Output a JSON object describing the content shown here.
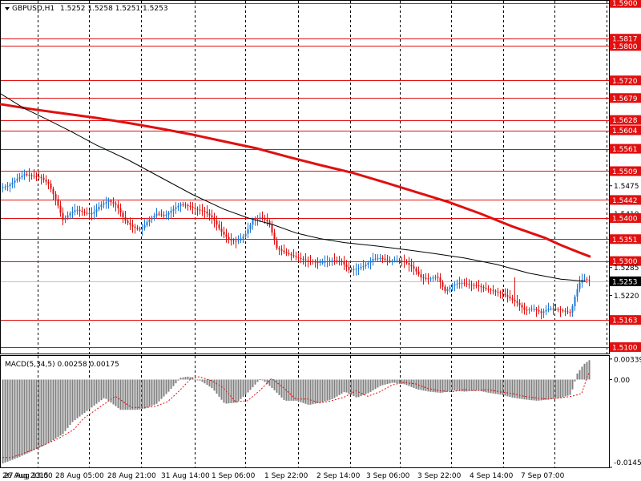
{
  "header": {
    "symbol_title": "GBPUSD,H1",
    "ohlc": "1.5252 1.5258 1.5251 1.5253",
    "macd_title": "MACD(5,34,5) 0.00258 0.00175"
  },
  "colors": {
    "background": "#ffffff",
    "bull_candle": "#1e78d2",
    "bear_candle": "#e01010",
    "level_line": "#e01010",
    "ma_fast": "#000000",
    "ma_slow": "#e01010",
    "macd_hist": "#808080",
    "macd_signal": "#e01010",
    "grid": "#000000",
    "price_badge": "#000000"
  },
  "chart_data": {
    "type": "candlestick",
    "price_range": [
      1.5085,
      1.5905
    ],
    "price_axis_ticks": [
      "1.5900",
      "1.5817",
      "1.5800",
      "1.5720",
      "1.5720",
      "1.5679",
      "1.5628",
      "1.5604",
      "1.5561",
      "1.5509",
      "1.5475",
      "1.5442",
      "1.5410",
      "1.5400",
      "1.5351",
      "1.5300",
      "1.5285",
      "1.5253",
      "1.5220",
      "1.5163",
      "1.5100"
    ],
    "horizontal_levels": [
      1.59,
      1.5817,
      1.58,
      1.572,
      1.5679,
      1.5628,
      1.5604,
      1.5561,
      1.5509,
      1.5442,
      1.54,
      1.5351,
      1.53,
      1.5163,
      1.51
    ],
    "current_price": "1.5253",
    "time_labels": [
      "26 Aug 2015",
      "27 Aug 13:00",
      "28 Aug 05:00",
      "28 Aug 21:00",
      "31 Aug 14:00",
      "1 Sep 06:00",
      "1 Sep 22:00",
      "2 Sep 14:00",
      "3 Sep 06:00",
      "3 Sep 22:00",
      "4 Sep 14:00",
      "7 Sep 07:00"
    ],
    "ma_fast_path": [
      [
        0,
        1.569
      ],
      [
        30,
        1.5655
      ],
      [
        60,
        1.5628
      ],
      [
        90,
        1.56
      ],
      [
        120,
        1.557
      ],
      [
        160,
        1.5535
      ],
      [
        200,
        1.5495
      ],
      [
        240,
        1.5455
      ],
      [
        280,
        1.542
      ],
      [
        310,
        1.54
      ],
      [
        340,
        1.5385
      ],
      [
        370,
        1.5365
      ],
      [
        400,
        1.5352
      ],
      [
        430,
        1.5343
      ],
      [
        470,
        1.5335
      ],
      [
        500,
        1.5328
      ],
      [
        540,
        1.5318
      ],
      [
        580,
        1.5307
      ],
      [
        620,
        1.5292
      ],
      [
        660,
        1.5272
      ],
      [
        700,
        1.5258
      ],
      [
        731,
        1.5253
      ]
    ],
    "ma_slow_path": [
      [
        0,
        1.5665
      ],
      [
        40,
        1.5653
      ],
      [
        80,
        1.5643
      ],
      [
        120,
        1.5633
      ],
      [
        160,
        1.5621
      ],
      [
        200,
        1.5608
      ],
      [
        240,
        1.5594
      ],
      [
        280,
        1.5578
      ],
      [
        320,
        1.5562
      ],
      [
        360,
        1.5542
      ],
      [
        400,
        1.5523
      ],
      [
        440,
        1.5505
      ],
      [
        480,
        1.5483
      ],
      [
        520,
        1.546
      ],
      [
        560,
        1.5437
      ],
      [
        600,
        1.541
      ],
      [
        640,
        1.538
      ],
      [
        680,
        1.5354
      ],
      [
        700,
        1.5337
      ],
      [
        720,
        1.5322
      ],
      [
        737,
        1.531
      ]
    ],
    "candles_close_trace": [
      [
        0,
        1.547
      ],
      [
        10,
        1.5475
      ],
      [
        20,
        1.549
      ],
      [
        30,
        1.5502
      ],
      [
        40,
        1.5498
      ],
      [
        50,
        1.5495
      ],
      [
        60,
        1.548
      ],
      [
        70,
        1.544
      ],
      [
        78,
        1.5395
      ],
      [
        86,
        1.541
      ],
      [
        95,
        1.542
      ],
      [
        105,
        1.5412
      ],
      [
        115,
        1.541
      ],
      [
        125,
        1.543
      ],
      [
        135,
        1.544
      ],
      [
        145,
        1.543
      ],
      [
        155,
        1.5395
      ],
      [
        165,
        1.538
      ],
      [
        175,
        1.5372
      ],
      [
        185,
        1.5395
      ],
      [
        195,
        1.541
      ],
      [
        205,
        1.5405
      ],
      [
        215,
        1.542
      ],
      [
        225,
        1.5432
      ],
      [
        235,
        1.5428
      ],
      [
        245,
        1.542
      ],
      [
        255,
        1.5415
      ],
      [
        265,
        1.54
      ],
      [
        275,
        1.537
      ],
      [
        285,
        1.535
      ],
      [
        295,
        1.5345
      ],
      [
        305,
        1.536
      ],
      [
        315,
        1.5395
      ],
      [
        325,
        1.5402
      ],
      [
        335,
        1.539
      ],
      [
        345,
        1.533
      ],
      [
        355,
        1.532
      ],
      [
        365,
        1.5312
      ],
      [
        375,
        1.5305
      ],
      [
        385,
        1.53
      ],
      [
        395,
        1.5297
      ],
      [
        405,
        1.5298
      ],
      [
        415,
        1.5303
      ],
      [
        425,
        1.53
      ],
      [
        435,
        1.528
      ],
      [
        445,
        1.5282
      ],
      [
        455,
        1.529
      ],
      [
        465,
        1.5305
      ],
      [
        475,
        1.5307
      ],
      [
        485,
        1.53
      ],
      [
        495,
        1.5302
      ],
      [
        505,
        1.5298
      ],
      [
        515,
        1.5285
      ],
      [
        525,
        1.5262
      ],
      [
        535,
        1.5258
      ],
      [
        545,
        1.5265
      ],
      [
        555,
        1.523
      ],
      [
        565,
        1.5245
      ],
      [
        575,
        1.525
      ],
      [
        585,
        1.5245
      ],
      [
        595,
        1.5243
      ],
      [
        605,
        1.5236
      ],
      [
        615,
        1.523
      ],
      [
        625,
        1.5226
      ],
      [
        635,
        1.5215
      ],
      [
        645,
        1.5203
      ],
      [
        655,
        1.5185
      ],
      [
        665,
        1.519
      ],
      [
        675,
        1.518
      ],
      [
        685,
        1.519
      ],
      [
        695,
        1.5188
      ],
      [
        705,
        1.5183
      ],
      [
        712,
        1.518
      ],
      [
        718,
        1.5225
      ],
      [
        724,
        1.5255
      ],
      [
        730,
        1.5258
      ],
      [
        737,
        1.5253
      ]
    ],
    "macd_zero": "0.00",
    "macd_axis_labels": [
      "0.00339",
      "0.00",
      "-0.0145"
    ],
    "macd_range": [
      -0.0145,
      0.0039
    ],
    "macd_hist_trace": [
      [
        0,
        -0.014
      ],
      [
        20,
        -0.013
      ],
      [
        40,
        -0.0118
      ],
      [
        60,
        -0.0105
      ],
      [
        78,
        -0.009
      ],
      [
        90,
        -0.007
      ],
      [
        110,
        -0.005
      ],
      [
        130,
        -0.003
      ],
      [
        150,
        -0.005
      ],
      [
        170,
        -0.005
      ],
      [
        180,
        -0.0048
      ],
      [
        195,
        -0.004
      ],
      [
        210,
        -0.002
      ],
      [
        225,
        0.0003
      ],
      [
        235,
        0.0005
      ],
      [
        250,
        -0.0002
      ],
      [
        265,
        -0.0015
      ],
      [
        280,
        -0.004
      ],
      [
        295,
        -0.0038
      ],
      [
        310,
        -0.002
      ],
      [
        325,
        0.0002
      ],
      [
        340,
        -0.0015
      ],
      [
        355,
        -0.0035
      ],
      [
        370,
        -0.0035
      ],
      [
        385,
        -0.0042
      ],
      [
        400,
        -0.0038
      ],
      [
        415,
        -0.0032
      ],
      [
        430,
        -0.002
      ],
      [
        445,
        -0.003
      ],
      [
        460,
        -0.0022
      ],
      [
        475,
        -0.001
      ],
      [
        490,
        -0.0005
      ],
      [
        505,
        -0.0008
      ],
      [
        520,
        -0.0016
      ],
      [
        535,
        -0.002
      ],
      [
        550,
        -0.0022
      ],
      [
        565,
        -0.0018
      ],
      [
        580,
        -0.002
      ],
      [
        595,
        -0.0018
      ],
      [
        610,
        -0.0022
      ],
      [
        625,
        -0.0025
      ],
      [
        640,
        -0.003
      ],
      [
        655,
        -0.0033
      ],
      [
        670,
        -0.0035
      ],
      [
        685,
        -0.0033
      ],
      [
        700,
        -0.003
      ],
      [
        712,
        -0.0025
      ],
      [
        720,
        0.001
      ],
      [
        728,
        0.0025
      ],
      [
        736,
        0.0033
      ]
    ]
  }
}
